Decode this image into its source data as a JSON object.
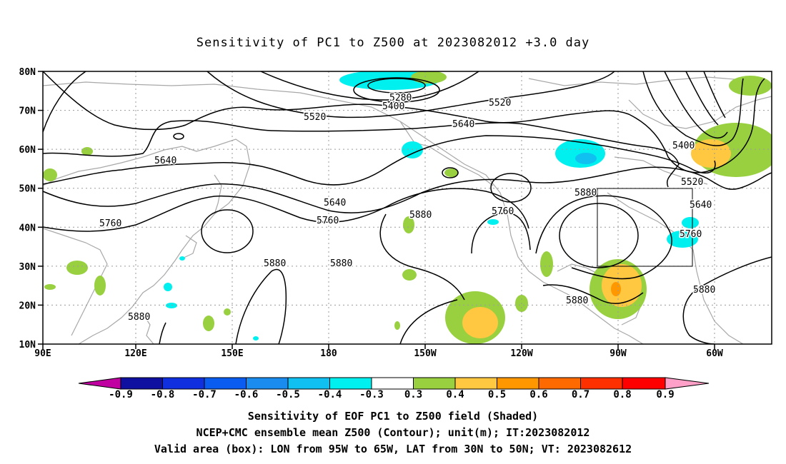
{
  "title": "Sensitivity of PC1 to Z500 at 2023082012 +3.0 day",
  "axes": {
    "lat_labels": [
      "80N",
      "70N",
      "60N",
      "50N",
      "40N",
      "30N",
      "20N",
      "10N"
    ],
    "lon_labels": [
      "90E",
      "120E",
      "150E",
      "180",
      "150W",
      "120W",
      "90W",
      "60W"
    ]
  },
  "contour_labels": [
    "5280",
    "5400",
    "5520",
    "5520",
    "5640",
    "5640",
    "5640",
    "5400",
    "5520",
    "5640",
    "5760",
    "5760",
    "5760",
    "5760",
    "5880",
    "5880",
    "5880",
    "5880",
    "5880",
    "5880"
  ],
  "colorbar": {
    "labels": [
      "-0.9",
      "-0.8",
      "-0.7",
      "-0.6",
      "-0.5",
      "-0.4",
      "-0.3",
      "0.3",
      "0.4",
      "0.5",
      "0.6",
      "0.7",
      "0.8",
      "0.9"
    ],
    "colors": [
      "#c000a0",
      "#1010a0",
      "#1030e0",
      "#0a5cf0",
      "#1a8cf0",
      "#10c0f0",
      "#00f0f0",
      "#ffffff",
      "#98d040",
      "#ffc840",
      "#ff9800",
      "#ff6a00",
      "#ff3000",
      "#ff0000",
      "#ffa0c8"
    ]
  },
  "captions": [
    "Sensitivity of EOF PC1 to Z500 field (Shaded)",
    "NCEP+CMC ensemble mean Z500 (Contour); unit(m); IT:2023082012",
    "Valid area (box): LON from 95W to 65W, LAT from 30N to 50N; VT: 2023082612"
  ]
}
